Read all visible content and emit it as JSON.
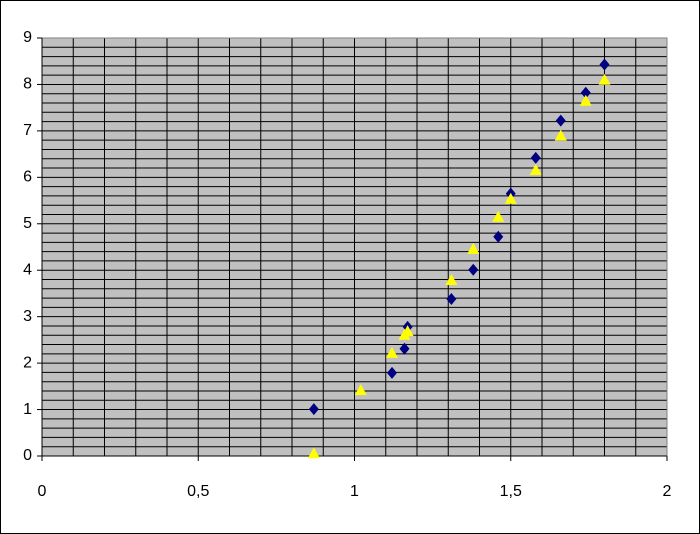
{
  "chart_data": {
    "type": "scatter",
    "xlim": [
      0,
      2
    ],
    "xticks": [
      0,
      {
        "value": 0.5,
        "label": "0,5"
      },
      1,
      {
        "value": 1.5,
        "label": "1,5"
      },
      2
    ],
    "ylim": [
      0,
      9
    ],
    "yticks": [
      0,
      1,
      2,
      3,
      4,
      5,
      6,
      7,
      8,
      9
    ],
    "x_gridlines": [
      0.1,
      0.2,
      0.3,
      0.4,
      0.5,
      0.6,
      0.7,
      0.8,
      0.9,
      1,
      1.1,
      1.2,
      1.3,
      1.4,
      1.5,
      1.6,
      1.7,
      1.8,
      1.9
    ],
    "y_gridlines": [
      0.2,
      0.4,
      0.6,
      0.8,
      1,
      1.2,
      1.4,
      1.6,
      1.8,
      2,
      2.2,
      2.4,
      2.6,
      2.8,
      3,
      3.2,
      3.4,
      3.6,
      3.8,
      4,
      4.2,
      4.4,
      4.6,
      4.8,
      5,
      5.2,
      5.4,
      5.6,
      5.8,
      6,
      6.2,
      6.4,
      6.6,
      6.8,
      7,
      7.2,
      7.4,
      7.6,
      7.8,
      8,
      8.2,
      8.4,
      8.6,
      8.8
    ],
    "plot_background": "#c0c0c0",
    "grid_color": "#000000",
    "series": [
      {
        "color": "#000080",
        "marker": "diamond",
        "x": [
          0.87,
          1.12,
          1.16,
          1.17,
          1.31,
          1.38,
          1.46,
          1.5,
          1.58,
          1.66,
          1.74,
          1.8
        ],
        "values": [
          1.01,
          1.79,
          2.31,
          2.78,
          3.38,
          4.01,
          4.72,
          5.65,
          6.42,
          7.22,
          7.82,
          8.43
        ]
      },
      {
        "color": "#ffff00",
        "marker": "triangle",
        "x": [
          0.87,
          1.02,
          1.12,
          1.16,
          1.17,
          1.31,
          1.38,
          1.46,
          1.5,
          1.58,
          1.66,
          1.74,
          1.8
        ],
        "values": [
          0.06,
          1.42,
          2.22,
          2.61,
          2.69,
          3.79,
          4.46,
          5.15,
          5.54,
          6.16,
          6.9,
          7.65,
          8.1
        ]
      }
    ]
  }
}
